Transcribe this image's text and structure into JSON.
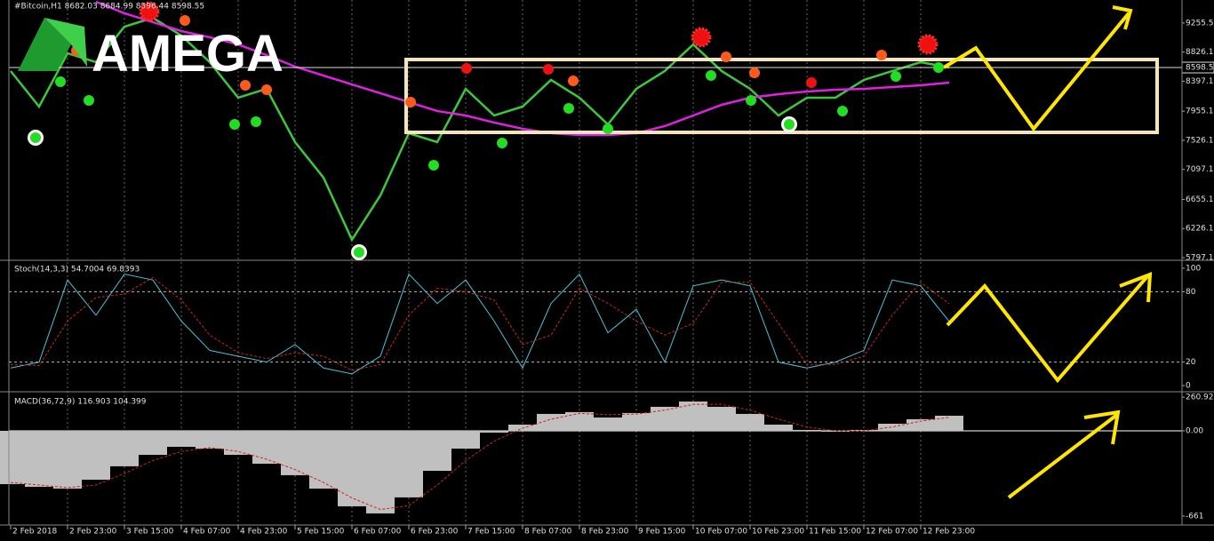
{
  "chart_data": [
    {
      "type": "line",
      "title": "#Bitcoin,H1  8682.03 8684.99 8596.44 8598.55",
      "logo": "AMEGA",
      "ylim": [
        5771,
        9594
      ],
      "yticks": [
        9255.55,
        {
          "value": 8826.1,
          "label": "8826.10"
        },
        {
          "value": 8397.1,
          "label": "8397.10"
        },
        {
          "value": 7955.1,
          "label": "7955.10"
        },
        {
          "value": 7526.1,
          "label": "7526.10"
        },
        {
          "value": 7097.1,
          "label": "7097.10"
        },
        {
          "value": 6655.1,
          "label": "6655.10"
        },
        {
          "value": 6226.1,
          "label": "6226.10"
        },
        {
          "value": 5797.1,
          "label": "5797.10"
        }
      ],
      "last_price": 8598.55,
      "series": [
        {
          "color": "#3cc83c",
          "values": [
            8547,
            8023,
            8809,
            8678,
            9201,
            9332,
            9070,
            8678,
            8154,
            8285,
            7500,
            6976,
            6060,
            6714,
            7630,
            7500,
            8285,
            7892,
            8023,
            8416,
            8154,
            7761,
            8285,
            8547,
            8939,
            8547,
            8285,
            7892,
            8154,
            8154,
            8416,
            8547,
            8678,
            8598.55,
            null,
            null,
            null,
            null,
            null,
            null,
            null
          ]
        },
        {
          "color": "#e020e0",
          "values": [
            null,
            null,
            null,
            9568,
            9398,
            9267,
            9136,
            9044,
            8939,
            8782,
            8612,
            8481,
            8350,
            8220,
            8089,
            7958,
            7892,
            7788,
            7696,
            7631,
            7604,
            7604,
            7631,
            7735,
            7892,
            8049,
            8154,
            8206,
            8246,
            8272,
            8285,
            8311,
            8337,
            8377,
            null,
            null,
            null,
            null,
            null,
            null,
            null
          ]
        }
      ]
    },
    {
      "type": "line",
      "title": "Stoch(14,3,3) 54.7004 69.8393",
      "ylim": [
        -4.5,
        104.5
      ],
      "yticks": [
        100,
        80,
        20,
        0
      ],
      "series": [
        {
          "color": "#40c8d8",
          "values": [
            15,
            20,
            90,
            60,
            95,
            90,
            55,
            30,
            25,
            20,
            35,
            15,
            10,
            25,
            95,
            70,
            90,
            55,
            15,
            70,
            95,
            45,
            65,
            20,
            85,
            90,
            85,
            20,
            15,
            20,
            30,
            90,
            85,
            54.7004,
            null,
            null,
            null,
            null,
            null,
            null,
            null
          ]
        },
        {
          "color": "#d02020",
          "dashed": true,
          "values": [
            18,
            17,
            55,
            75,
            78,
            92,
            73,
            43,
            28,
            23,
            28,
            25,
            13,
            18,
            60,
            83,
            80,
            73,
            35,
            43,
            83,
            70,
            55,
            43,
            53,
            88,
            88,
            53,
            18,
            18,
            25,
            60,
            88,
            69.8393,
            null,
            null,
            null,
            null,
            null,
            null,
            null
          ]
        }
      ]
    },
    {
      "type": "bar",
      "title": "MACD(36,72,9) 116.903 104.399",
      "ylim": [
        -723,
        282
      ],
      "yticks": [
        260.922,
        {
          "value": 0,
          "label": "0.00"
        },
        -661
      ],
      "categories": [
        "2 Feb 2018",
        null,
        "2 Feb 23:00",
        null,
        "3 Feb 15:00",
        null,
        "4 Feb 07:00",
        null,
        "4 Feb 23:00",
        null,
        "5 Feb 15:00",
        null,
        "6 Feb 07:00",
        null,
        "6 Feb 23:00",
        null,
        "7 Feb 15:00",
        null,
        "8 Feb 07:00",
        null,
        "8 Feb 23:00",
        null,
        "9 Feb 15:00",
        null,
        "10 Feb 07:00",
        null,
        "10 Feb 23:00",
        null,
        "11 Feb 15:00",
        null,
        "12 Feb 07:00",
        null,
        "12 Feb 23:00",
        null,
        null,
        null,
        null,
        null,
        null,
        null,
        null
      ],
      "series": [
        {
          "color": "#c0c0c0",
          "values": [
            -413,
            -434,
            -448,
            -379,
            -275,
            -186,
            -124,
            -138,
            -186,
            -255,
            -344,
            -448,
            -585,
            -640,
            -516,
            -310,
            -138,
            -14,
            48,
            131,
            145,
            103,
            138,
            186,
            227,
            186,
            131,
            48,
            7,
            -7,
            7,
            55,
            90,
            116.903,
            null,
            null,
            null,
            null,
            null,
            null,
            null
          ]
        },
        {
          "type": "line",
          "color": "#d02020",
          "dashed": true,
          "values": [
            -400,
            -420,
            -440,
            -420,
            -330,
            -230,
            -160,
            -130,
            -160,
            -220,
            -300,
            -400,
            -520,
            -610,
            -580,
            -420,
            -230,
            -80,
            20,
            90,
            135,
            125,
            130,
            160,
            205,
            205,
            160,
            90,
            30,
            0,
            0,
            30,
            75,
            104.399,
            null,
            null,
            null,
            null,
            null,
            null,
            null
          ]
        }
      ]
    }
  ]
}
